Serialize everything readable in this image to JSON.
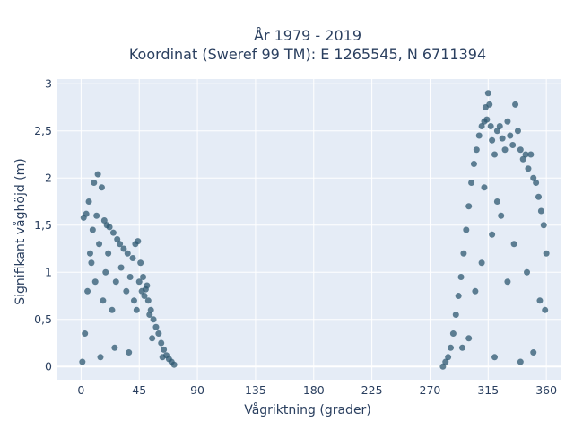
{
  "chart_data": {
    "type": "scatter",
    "title": "År 1979 - 2019",
    "subtitle": "Koordinat (Sweref 99 TM): E 1265545, N 6711394",
    "xlabel": "Vågriktning (grader)",
    "ylabel": "Signifikant våghöjd (m)",
    "xlim": [
      -19,
      371
    ],
    "ylim": [
      -0.14,
      3.05
    ],
    "xticks": [
      0,
      45,
      90,
      135,
      180,
      225,
      270,
      315,
      360
    ],
    "xtick_labels": [
      "0",
      "45",
      "90",
      "135",
      "180",
      "225",
      "270",
      "315",
      "360"
    ],
    "yticks": [
      0,
      0.5,
      1,
      1.5,
      2,
      2.5,
      3
    ],
    "ytick_labels": [
      "0",
      "0,5",
      "1",
      "1,5",
      "2",
      "2,5",
      "3"
    ],
    "grid": true,
    "colors": {
      "marker": "#2e5870",
      "plot_bg": "#e5ecf6",
      "grid": "#ffffff",
      "text": "#2a3f5f"
    },
    "series": [
      {
        "values": [
          [
            3,
            0.35
          ],
          [
            5,
            0.8
          ],
          [
            7,
            1.2
          ],
          [
            9,
            1.45
          ],
          [
            10,
            1.95
          ],
          [
            13,
            2.04
          ],
          [
            16,
            1.9
          ],
          [
            6,
            1.75
          ],
          [
            2,
            1.58
          ],
          [
            4,
            1.62
          ],
          [
            12,
            1.6
          ],
          [
            18,
            1.55
          ],
          [
            20,
            1.5
          ],
          [
            22,
            1.48
          ],
          [
            25,
            1.42
          ],
          [
            28,
            1.35
          ],
          [
            30,
            1.3
          ],
          [
            33,
            1.25
          ],
          [
            36,
            1.2
          ],
          [
            40,
            1.15
          ],
          [
            42,
            1.3
          ],
          [
            44,
            1.33
          ],
          [
            46,
            1.1
          ],
          [
            48,
            0.95
          ],
          [
            50,
            0.82
          ],
          [
            52,
            0.7
          ],
          [
            54,
            0.6
          ],
          [
            56,
            0.5
          ],
          [
            58,
            0.42
          ],
          [
            60,
            0.35
          ],
          [
            62,
            0.25
          ],
          [
            64,
            0.18
          ],
          [
            66,
            0.12
          ],
          [
            68,
            0.08
          ],
          [
            70,
            0.05
          ],
          [
            72,
            0.02
          ],
          [
            47,
            0.8
          ],
          [
            49,
            0.75
          ],
          [
            51,
            0.86
          ],
          [
            53,
            0.55
          ],
          [
            8,
            1.1
          ],
          [
            11,
            0.9
          ],
          [
            14,
            1.3
          ],
          [
            17,
            0.7
          ],
          [
            19,
            1.0
          ],
          [
            21,
            1.2
          ],
          [
            24,
            0.6
          ],
          [
            27,
            0.9
          ],
          [
            31,
            1.05
          ],
          [
            35,
            0.8
          ],
          [
            38,
            0.95
          ],
          [
            41,
            0.7
          ],
          [
            43,
            0.6
          ],
          [
            45,
            0.9
          ],
          [
            1,
            0.05
          ],
          [
            15,
            0.1
          ],
          [
            26,
            0.2
          ],
          [
            37,
            0.15
          ],
          [
            55,
            0.3
          ],
          [
            63,
            0.1
          ],
          [
            280,
            0.0
          ],
          [
            282,
            0.05
          ],
          [
            284,
            0.1
          ],
          [
            286,
            0.2
          ],
          [
            288,
            0.35
          ],
          [
            290,
            0.55
          ],
          [
            292,
            0.75
          ],
          [
            294,
            0.95
          ],
          [
            296,
            1.2
          ],
          [
            298,
            1.45
          ],
          [
            300,
            1.7
          ],
          [
            302,
            1.95
          ],
          [
            304,
            2.15
          ],
          [
            306,
            2.3
          ],
          [
            308,
            2.45
          ],
          [
            310,
            2.55
          ],
          [
            312,
            2.6
          ],
          [
            313,
            2.75
          ],
          [
            314,
            2.62
          ],
          [
            315,
            2.9
          ],
          [
            316,
            2.78
          ],
          [
            317,
            2.55
          ],
          [
            318,
            2.4
          ],
          [
            320,
            2.25
          ],
          [
            322,
            2.5
          ],
          [
            324,
            2.55
          ],
          [
            326,
            2.42
          ],
          [
            328,
            2.3
          ],
          [
            330,
            2.6
          ],
          [
            332,
            2.45
          ],
          [
            334,
            2.35
          ],
          [
            336,
            2.78
          ],
          [
            338,
            2.5
          ],
          [
            340,
            2.3
          ],
          [
            342,
            2.2
          ],
          [
            344,
            2.25
          ],
          [
            346,
            2.1
          ],
          [
            348,
            2.25
          ],
          [
            350,
            2.0
          ],
          [
            352,
            1.95
          ],
          [
            354,
            1.8
          ],
          [
            356,
            1.65
          ],
          [
            358,
            1.5
          ],
          [
            360,
            1.2
          ],
          [
            359,
            0.6
          ],
          [
            305,
            0.8
          ],
          [
            310,
            1.1
          ],
          [
            318,
            1.4
          ],
          [
            325,
            1.6
          ],
          [
            335,
            1.3
          ],
          [
            345,
            1.0
          ],
          [
            355,
            0.7
          ],
          [
            300,
            0.3
          ],
          [
            295,
            0.2
          ],
          [
            320,
            0.1
          ],
          [
            340,
            0.05
          ],
          [
            350,
            0.15
          ],
          [
            330,
            0.9
          ],
          [
            312,
            1.9
          ],
          [
            322,
            1.75
          ]
        ]
      }
    ]
  }
}
